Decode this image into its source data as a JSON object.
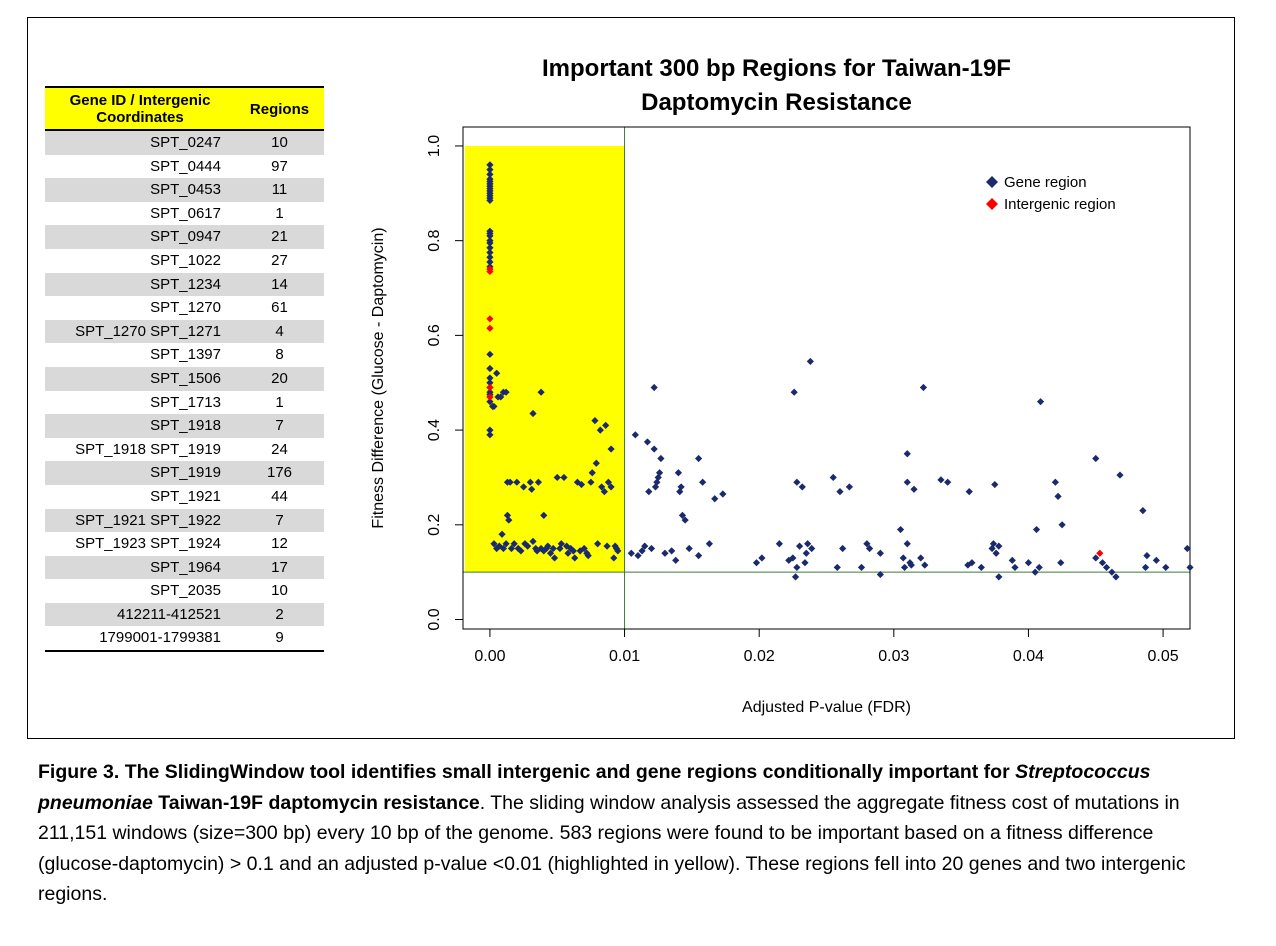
{
  "table": {
    "headers": [
      "Gene ID / Intergenic Coordinates",
      "Regions"
    ],
    "rows": [
      {
        "id": "SPT_0247",
        "regions": "10"
      },
      {
        "id": "SPT_0444",
        "regions": "97"
      },
      {
        "id": "SPT_0453",
        "regions": "11"
      },
      {
        "id": "SPT_0617",
        "regions": "1"
      },
      {
        "id": "SPT_0947",
        "regions": "21"
      },
      {
        "id": "SPT_1022",
        "regions": "27"
      },
      {
        "id": "SPT_1234",
        "regions": "14"
      },
      {
        "id": "SPT_1270",
        "regions": "61"
      },
      {
        "id": "SPT_1270 SPT_1271",
        "regions": "4"
      },
      {
        "id": "SPT_1397",
        "regions": "8"
      },
      {
        "id": "SPT_1506",
        "regions": "20"
      },
      {
        "id": "SPT_1713",
        "regions": "1"
      },
      {
        "id": "SPT_1918",
        "regions": "7"
      },
      {
        "id": "SPT_1918 SPT_1919",
        "regions": "24"
      },
      {
        "id": "SPT_1919",
        "regions": "176"
      },
      {
        "id": "SPT_1921",
        "regions": "44"
      },
      {
        "id": "SPT_1921 SPT_1922",
        "regions": "7"
      },
      {
        "id": "SPT_1923 SPT_1924",
        "regions": "12"
      },
      {
        "id": "SPT_1964",
        "regions": "17"
      },
      {
        "id": "SPT_2035",
        "regions": "10"
      },
      {
        "id": "412211-412521",
        "regions": "2"
      },
      {
        "id": "1799001-1799381",
        "regions": "9"
      }
    ],
    "header_color": "#ffff00",
    "shade_color": "#d9d9d9"
  },
  "chart_data": {
    "type": "scatter",
    "title": "Important 300 bp Regions for Taiwan-19F Daptomycin Resistance",
    "title_lines": [
      "Important 300 bp Regions for Taiwan-19F",
      "Daptomycin Resistance"
    ],
    "xlabel": "Adjusted P-value (FDR)",
    "ylabel": "Fitness Difference (Glucose - Daptomycin)",
    "xlim": [
      -0.002,
      0.052
    ],
    "ylim": [
      -0.02,
      1.04
    ],
    "xticks": [
      0.0,
      0.01,
      0.02,
      0.03,
      0.04,
      0.05
    ],
    "xtick_labels": [
      "0.00",
      "0.01",
      "0.02",
      "0.03",
      "0.04",
      "0.05"
    ],
    "yticks": [
      0.0,
      0.2,
      0.4,
      0.6,
      0.8,
      1.0
    ],
    "ytick_labels": [
      "0.0",
      "0.2",
      "0.4",
      "0.6",
      "0.8",
      "1.0"
    ],
    "threshold_x": 0.01,
    "threshold_y": 0.1,
    "highlight": {
      "x": [
        0,
        0.01
      ],
      "y": [
        0.1,
        1.0
      ],
      "color": "#ffff00"
    },
    "legend": "top-right",
    "series": [
      {
        "name": "Gene region",
        "color": "#1a2a6c",
        "points": [
          [
            0,
            0.96
          ],
          [
            0,
            0.95
          ],
          [
            0,
            0.94
          ],
          [
            0,
            0.93
          ],
          [
            0,
            0.925
          ],
          [
            0,
            0.92
          ],
          [
            0,
            0.915
          ],
          [
            0,
            0.91
          ],
          [
            0,
            0.905
          ],
          [
            0,
            0.9
          ],
          [
            0,
            0.895
          ],
          [
            0,
            0.89
          ],
          [
            0,
            0.885
          ],
          [
            0,
            0.82
          ],
          [
            0,
            0.815
          ],
          [
            0,
            0.81
          ],
          [
            0,
            0.8
          ],
          [
            0,
            0.795
          ],
          [
            0,
            0.785
          ],
          [
            0,
            0.775
          ],
          [
            0,
            0.765
          ],
          [
            0,
            0.755
          ],
          [
            0,
            0.745
          ],
          [
            0,
            0.56
          ],
          [
            0,
            0.53
          ],
          [
            0,
            0.51
          ],
          [
            0,
            0.5
          ],
          [
            0,
            0.49
          ],
          [
            0,
            0.48
          ],
          [
            0,
            0.475
          ],
          [
            0,
            0.47
          ],
          [
            0,
            0.46
          ],
          [
            0,
            0.4
          ],
          [
            0,
            0.39
          ],
          [
            0.0002,
            0.45
          ],
          [
            0.0003,
            0.45
          ],
          [
            0.0005,
            0.52
          ],
          [
            0.0006,
            0.47
          ],
          [
            0.0008,
            0.47
          ],
          [
            0.001,
            0.48
          ],
          [
            0.0012,
            0.48
          ],
          [
            0.0003,
            0.16
          ],
          [
            0.0005,
            0.15
          ],
          [
            0.0007,
            0.155
          ],
          [
            0.0009,
            0.18
          ],
          [
            0.001,
            0.15
          ],
          [
            0.0012,
            0.16
          ],
          [
            0.0013,
            0.22
          ],
          [
            0.0014,
            0.21
          ],
          [
            0.0013,
            0.29
          ],
          [
            0.0015,
            0.29
          ],
          [
            0.0016,
            0.15
          ],
          [
            0.0018,
            0.16
          ],
          [
            0.002,
            0.29
          ],
          [
            0.0021,
            0.15
          ],
          [
            0.0023,
            0.145
          ],
          [
            0.0025,
            0.28
          ],
          [
            0.0026,
            0.16
          ],
          [
            0.0028,
            0.155
          ],
          [
            0.003,
            0.29
          ],
          [
            0.0031,
            0.275
          ],
          [
            0.0032,
            0.165
          ],
          [
            0.0034,
            0.15
          ],
          [
            0.0035,
            0.145
          ],
          [
            0.0036,
            0.29
          ],
          [
            0.0038,
            0.15
          ],
          [
            0.004,
            0.145
          ],
          [
            0.004,
            0.22
          ],
          [
            0.0042,
            0.15
          ],
          [
            0.0043,
            0.155
          ],
          [
            0.0045,
            0.14
          ],
          [
            0.0047,
            0.15
          ],
          [
            0.0048,
            0.13
          ],
          [
            0.0032,
            0.435
          ],
          [
            0.0038,
            0.48
          ],
          [
            0.005,
            0.3
          ],
          [
            0.0052,
            0.15
          ],
          [
            0.0053,
            0.16
          ],
          [
            0.0055,
            0.3
          ],
          [
            0.0057,
            0.155
          ],
          [
            0.0058,
            0.14
          ],
          [
            0.006,
            0.15
          ],
          [
            0.0062,
            0.145
          ],
          [
            0.0063,
            0.13
          ],
          [
            0.0065,
            0.29
          ],
          [
            0.0067,
            0.145
          ],
          [
            0.0068,
            0.285
          ],
          [
            0.007,
            0.15
          ],
          [
            0.0072,
            0.14
          ],
          [
            0.0073,
            0.135
          ],
          [
            0.0075,
            0.29
          ],
          [
            0.0076,
            0.31
          ],
          [
            0.0078,
            0.42
          ],
          [
            0.0079,
            0.33
          ],
          [
            0.008,
            0.16
          ],
          [
            0.0082,
            0.4
          ],
          [
            0.0083,
            0.28
          ],
          [
            0.0085,
            0.27
          ],
          [
            0.0086,
            0.41
          ],
          [
            0.0087,
            0.155
          ],
          [
            0.0088,
            0.29
          ],
          [
            0.009,
            0.28
          ],
          [
            0.009,
            0.36
          ],
          [
            0.0092,
            0.13
          ],
          [
            0.0093,
            0.155
          ],
          [
            0.0094,
            0.15
          ],
          [
            0.0095,
            0.145
          ],
          [
            0.0105,
            0.14
          ],
          [
            0.0108,
            0.39
          ],
          [
            0.011,
            0.135
          ],
          [
            0.0113,
            0.145
          ],
          [
            0.0115,
            0.155
          ],
          [
            0.0117,
            0.375
          ],
          [
            0.0118,
            0.27
          ],
          [
            0.012,
            0.15
          ],
          [
            0.0122,
            0.49
          ],
          [
            0.0122,
            0.36
          ],
          [
            0.0123,
            0.28
          ],
          [
            0.0124,
            0.29
          ],
          [
            0.0125,
            0.3
          ],
          [
            0.0126,
            0.31
          ],
          [
            0.0127,
            0.34
          ],
          [
            0.013,
            0.14
          ],
          [
            0.0135,
            0.145
          ],
          [
            0.0138,
            0.125
          ],
          [
            0.014,
            0.31
          ],
          [
            0.0141,
            0.27
          ],
          [
            0.0142,
            0.28
          ],
          [
            0.0143,
            0.22
          ],
          [
            0.0145,
            0.21
          ],
          [
            0.0148,
            0.15
          ],
          [
            0.0155,
            0.135
          ],
          [
            0.0155,
            0.34
          ],
          [
            0.0158,
            0.29
          ],
          [
            0.0163,
            0.16
          ],
          [
            0.0167,
            0.255
          ],
          [
            0.0173,
            0.265
          ],
          [
            0.0198,
            0.12
          ],
          [
            0.0202,
            0.13
          ],
          [
            0.0215,
            0.16
          ],
          [
            0.0222,
            0.125
          ],
          [
            0.0225,
            0.13
          ],
          [
            0.0226,
            0.48
          ],
          [
            0.0227,
            0.09
          ],
          [
            0.0228,
            0.11
          ],
          [
            0.0228,
            0.29
          ],
          [
            0.023,
            0.155
          ],
          [
            0.0232,
            0.28
          ],
          [
            0.0234,
            0.12
          ],
          [
            0.0235,
            0.14
          ],
          [
            0.0236,
            0.16
          ],
          [
            0.0238,
            0.545
          ],
          [
            0.0239,
            0.15
          ],
          [
            0.0255,
            0.3
          ],
          [
            0.0258,
            0.11
          ],
          [
            0.026,
            0.27
          ],
          [
            0.0262,
            0.15
          ],
          [
            0.0267,
            0.28
          ],
          [
            0.0276,
            0.11
          ],
          [
            0.028,
            0.16
          ],
          [
            0.0282,
            0.15
          ],
          [
            0.029,
            0.095
          ],
          [
            0.029,
            0.14
          ],
          [
            0.0305,
            0.19
          ],
          [
            0.0307,
            0.13
          ],
          [
            0.0308,
            0.11
          ],
          [
            0.031,
            0.16
          ],
          [
            0.031,
            0.29
          ],
          [
            0.031,
            0.35
          ],
          [
            0.0312,
            0.12
          ],
          [
            0.0313,
            0.115
          ],
          [
            0.0315,
            0.275
          ],
          [
            0.032,
            0.13
          ],
          [
            0.0322,
            0.49
          ],
          [
            0.0323,
            0.115
          ],
          [
            0.0335,
            0.295
          ],
          [
            0.034,
            0.29
          ],
          [
            0.0355,
            0.115
          ],
          [
            0.0356,
            0.27
          ],
          [
            0.0358,
            0.12
          ],
          [
            0.0365,
            0.11
          ],
          [
            0.0373,
            0.15
          ],
          [
            0.0374,
            0.16
          ],
          [
            0.0375,
            0.285
          ],
          [
            0.0376,
            0.14
          ],
          [
            0.0378,
            0.09
          ],
          [
            0.0378,
            0.155
          ],
          [
            0.0388,
            0.125
          ],
          [
            0.039,
            0.11
          ],
          [
            0.04,
            0.12
          ],
          [
            0.0405,
            0.1
          ],
          [
            0.0406,
            0.19
          ],
          [
            0.0408,
            0.11
          ],
          [
            0.0409,
            0.46
          ],
          [
            0.042,
            0.29
          ],
          [
            0.0422,
            0.26
          ],
          [
            0.0424,
            0.12
          ],
          [
            0.0425,
            0.2
          ],
          [
            0.045,
            0.34
          ],
          [
            0.045,
            0.13
          ],
          [
            0.0455,
            0.12
          ],
          [
            0.0458,
            0.11
          ],
          [
            0.0462,
            0.1
          ],
          [
            0.0465,
            0.09
          ],
          [
            0.0468,
            0.305
          ],
          [
            0.0485,
            0.23
          ],
          [
            0.0487,
            0.11
          ],
          [
            0.0488,
            0.135
          ],
          [
            0.0495,
            0.125
          ],
          [
            0.0502,
            0.11
          ],
          [
            0.0518,
            0.15
          ],
          [
            0.052,
            0.11
          ]
        ]
      },
      {
        "name": "Intergenic region",
        "color": "#ff0000",
        "points": [
          [
            0,
            0.735
          ],
          [
            0,
            0.74
          ],
          [
            0,
            0.635
          ],
          [
            0,
            0.615
          ],
          [
            0,
            0.49
          ],
          [
            0,
            0.47
          ],
          [
            0.0453,
            0.14
          ]
        ]
      }
    ]
  },
  "caption": {
    "figure_label": "Figure 3. ",
    "bold_text": "The SlidingWindow tool identifies small intergenic and gene regions conditionally important for ",
    "species": "Streptococcus pneumoniae",
    "bold_text_2": " Taiwan-19F daptomycin resistance",
    "body": ". The sliding window analysis assessed the aggregate fitness cost of mutations in 211,151 windows (size=300 bp) every 10 bp of the genome. 583 regions were found to be important based on a fitness difference (glucose-daptomycin) > 0.1 and an adjusted p-value <0.01 (highlighted in yellow). These regions fell into 20 genes and two intergenic regions."
  }
}
